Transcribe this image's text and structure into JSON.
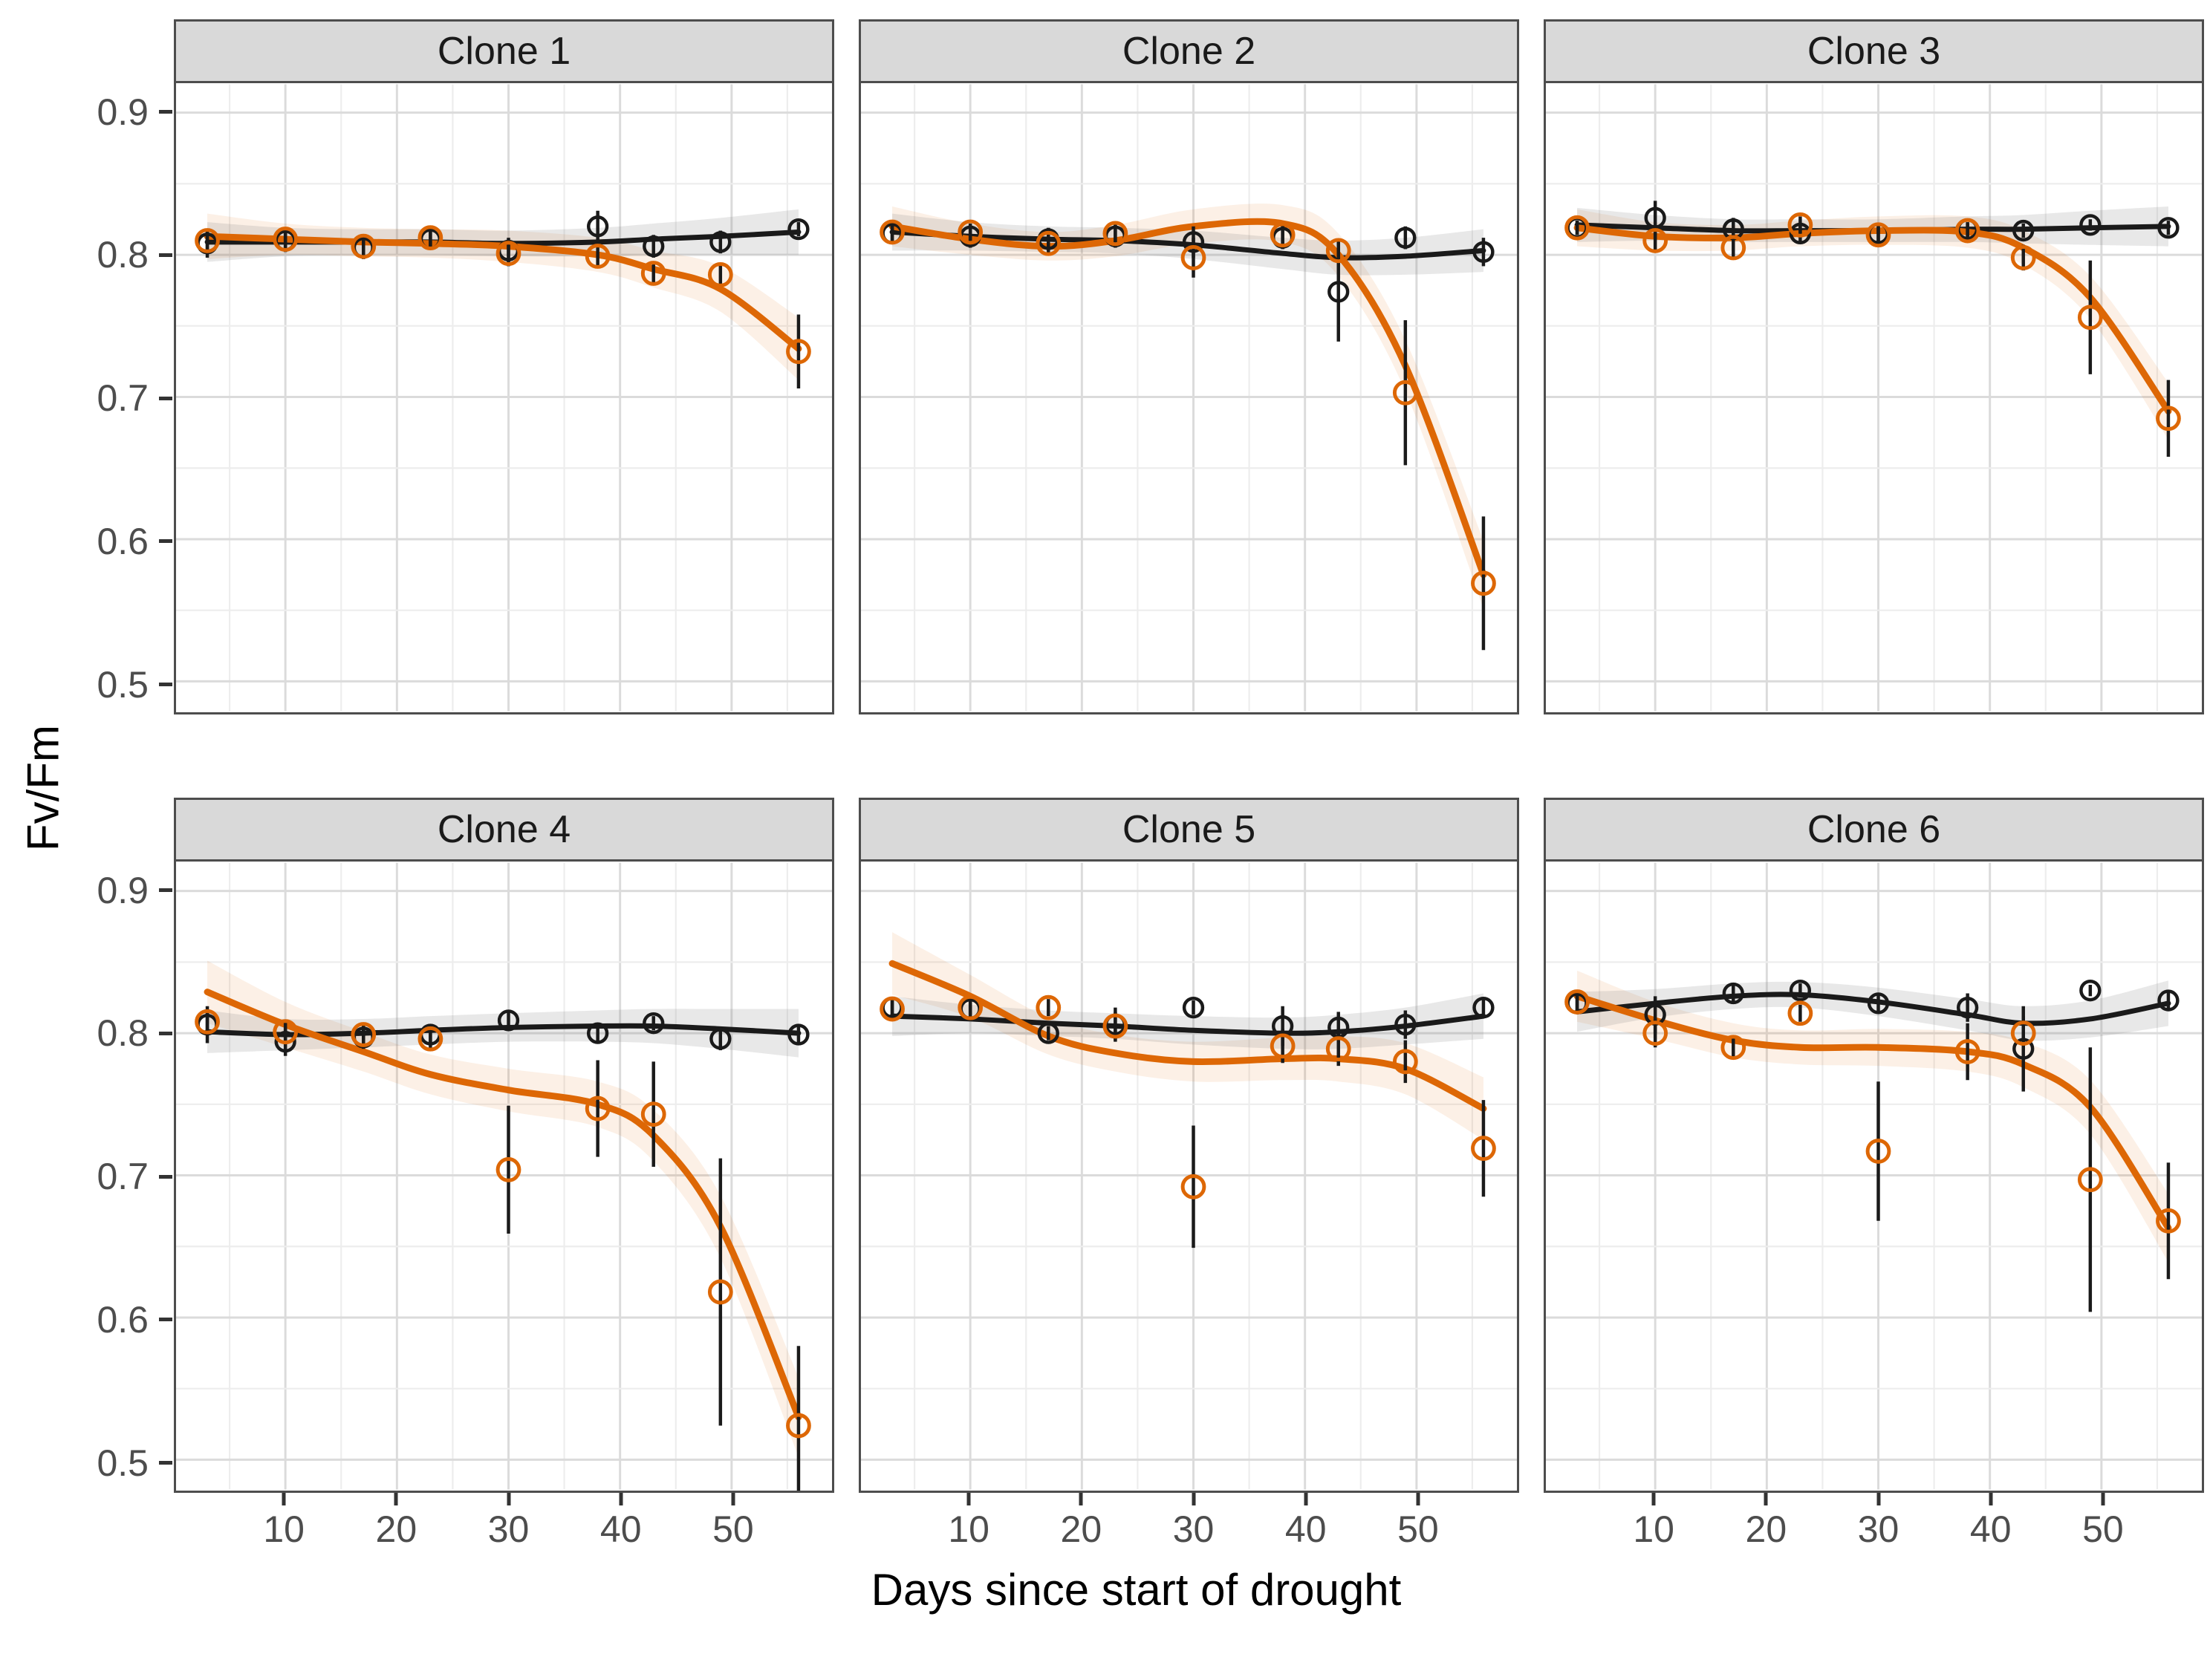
{
  "figure": {
    "colors": {
      "black_series": "#1A1A1A",
      "orange_series": "#DD6705",
      "strip_background": "#D9D9D9",
      "panel_border": "#4D4D4D",
      "grid_major": "#DBDBDB",
      "grid_minor": "#EDEDED",
      "band_black": "rgba(125,125,125,0.18)",
      "band_orange": "rgba(221,103,5,0.10)"
    }
  },
  "chart_data": {
    "type": "line",
    "title": "",
    "xlabel": "Days since start of drought",
    "ylabel": "Fv/Fm",
    "legend": "none",
    "grid": "on",
    "x_ticks": [
      10,
      20,
      30,
      40,
      50
    ],
    "y_ticks": [
      0.9,
      0.8,
      0.7,
      0.6,
      0.5
    ],
    "x_minor_step": 5,
    "y_minor_step": 0.05,
    "xlim": [
      0.2,
      59
    ],
    "ylim": [
      0.479,
      0.92
    ],
    "days": [
      3,
      10,
      17,
      23,
      30,
      38,
      43,
      49,
      56
    ],
    "series_keys": [
      "black",
      "orange"
    ],
    "panels": [
      {
        "label": "Clone 1",
        "black": {
          "y": [
            0.808,
            0.81,
            0.805,
            0.811,
            0.803,
            0.82,
            0.806,
            0.809,
            0.818
          ],
          "err": [
            0.01,
            0.008,
            0.008,
            0.007,
            0.009,
            0.011,
            0.008,
            0.008,
            0.005
          ],
          "smooth": [
            0.809,
            0.809,
            0.809,
            0.809,
            0.808,
            0.809,
            0.811,
            0.813,
            0.816
          ],
          "band": [
            0.014,
            0.01,
            0.009,
            0.009,
            0.009,
            0.01,
            0.011,
            0.013,
            0.016
          ]
        },
        "orange": {
          "y": [
            0.81,
            0.811,
            0.806,
            0.812,
            0.801,
            0.799,
            0.787,
            0.786,
            0.732
          ],
          "err": [
            0.007,
            0.006,
            0.008,
            0.006,
            0.009,
            0.008,
            0.007,
            0.008,
            0.026
          ],
          "smooth": [
            0.813,
            0.811,
            0.809,
            0.808,
            0.806,
            0.8,
            0.79,
            0.776,
            0.734
          ],
          "band": [
            0.016,
            0.011,
            0.01,
            0.01,
            0.011,
            0.012,
            0.013,
            0.016,
            0.022
          ]
        }
      },
      {
        "label": "Clone 2",
        "black": {
          "y": [
            0.815,
            0.813,
            0.811,
            0.813,
            0.809,
            0.812,
            0.774,
            0.812,
            0.802
          ],
          "err": [
            0.006,
            0.008,
            0.008,
            0.008,
            0.011,
            0.008,
            0.035,
            0.008,
            0.01
          ],
          "smooth": [
            0.816,
            0.813,
            0.811,
            0.81,
            0.807,
            0.801,
            0.798,
            0.799,
            0.803
          ],
          "band": [
            0.013,
            0.01,
            0.009,
            0.009,
            0.01,
            0.011,
            0.012,
            0.013,
            0.015
          ]
        },
        "orange": {
          "y": [
            0.816,
            0.816,
            0.808,
            0.815,
            0.798,
            0.814,
            0.803,
            0.703,
            0.569
          ],
          "err": [
            0.006,
            0.006,
            0.008,
            0.008,
            0.014,
            0.008,
            0.008,
            0.051,
            0.047
          ],
          "smooth": [
            0.82,
            0.811,
            0.806,
            0.81,
            0.82,
            0.822,
            0.8,
            0.722,
            0.575
          ],
          "band": [
            0.014,
            0.011,
            0.01,
            0.011,
            0.012,
            0.013,
            0.015,
            0.018,
            0.024
          ]
        }
      },
      {
        "label": "Clone 3",
        "black": {
          "y": [
            0.819,
            0.826,
            0.818,
            0.815,
            0.815,
            0.818,
            0.817,
            0.821,
            0.819
          ],
          "err": [
            0.005,
            0.012,
            0.008,
            0.006,
            0.007,
            0.005,
            0.005,
            0.004,
            0.005
          ],
          "smooth": [
            0.821,
            0.819,
            0.817,
            0.817,
            0.817,
            0.818,
            0.818,
            0.819,
            0.82
          ],
          "band": [
            0.012,
            0.009,
            0.008,
            0.008,
            0.008,
            0.009,
            0.01,
            0.012,
            0.014
          ]
        },
        "orange": {
          "y": [
            0.819,
            0.81,
            0.805,
            0.821,
            0.814,
            0.817,
            0.798,
            0.756,
            0.685
          ],
          "err": [
            0.005,
            0.008,
            0.008,
            0.006,
            0.007,
            0.005,
            0.009,
            0.04,
            0.027
          ],
          "smooth": [
            0.819,
            0.813,
            0.812,
            0.815,
            0.817,
            0.816,
            0.805,
            0.77,
            0.69
          ],
          "band": [
            0.013,
            0.01,
            0.009,
            0.009,
            0.01,
            0.011,
            0.012,
            0.015,
            0.02
          ]
        }
      },
      {
        "label": "Clone 4",
        "black": {
          "y": [
            0.806,
            0.794,
            0.797,
            0.799,
            0.809,
            0.8,
            0.807,
            0.796,
            0.799
          ],
          "err": [
            0.013,
            0.01,
            0.008,
            0.006,
            0.006,
            0.006,
            0.005,
            0.008,
            0.006
          ],
          "smooth": [
            0.801,
            0.799,
            0.8,
            0.802,
            0.804,
            0.805,
            0.805,
            0.803,
            0.8
          ],
          "band": [
            0.015,
            0.011,
            0.01,
            0.01,
            0.01,
            0.011,
            0.012,
            0.014,
            0.017
          ]
        },
        "orange": {
          "y": [
            0.808,
            0.801,
            0.799,
            0.796,
            0.704,
            0.747,
            0.743,
            0.618,
            0.524
          ],
          "err": [
            0.008,
            0.008,
            0.008,
            0.008,
            0.045,
            0.034,
            0.037,
            0.094,
            0.056
          ],
          "smooth": [
            0.829,
            0.806,
            0.787,
            0.771,
            0.76,
            0.75,
            0.728,
            0.664,
            0.53
          ],
          "band": [
            0.022,
            0.016,
            0.014,
            0.014,
            0.015,
            0.016,
            0.018,
            0.022,
            0.028
          ]
        }
      },
      {
        "label": "Clone 5",
        "black": {
          "y": [
            0.818,
            0.817,
            0.8,
            0.806,
            0.818,
            0.805,
            0.804,
            0.806,
            0.818
          ],
          "err": [
            0.006,
            0.006,
            0.005,
            0.012,
            0.005,
            0.014,
            0.011,
            0.01,
            0.006
          ],
          "smooth": [
            0.812,
            0.81,
            0.807,
            0.805,
            0.802,
            0.8,
            0.801,
            0.805,
            0.812
          ],
          "band": [
            0.014,
            0.01,
            0.009,
            0.009,
            0.01,
            0.011,
            0.012,
            0.013,
            0.016
          ]
        },
        "orange": {
          "y": [
            0.817,
            0.818,
            0.818,
            0.805,
            0.692,
            0.791,
            0.789,
            0.78,
            0.719
          ],
          "err": [
            0.006,
            0.005,
            0.006,
            0.01,
            0.043,
            0.012,
            0.012,
            0.015,
            0.034
          ],
          "smooth": [
            0.849,
            0.826,
            0.798,
            0.786,
            0.78,
            0.782,
            0.782,
            0.775,
            0.747
          ],
          "band": [
            0.022,
            0.015,
            0.013,
            0.013,
            0.014,
            0.015,
            0.016,
            0.018,
            0.022
          ]
        }
      },
      {
        "label": "Clone 6",
        "black": {
          "y": [
            0.821,
            0.813,
            0.828,
            0.83,
            0.821,
            0.818,
            0.789,
            0.83,
            0.823
          ],
          "err": [
            0.006,
            0.013,
            0.006,
            0.005,
            0.006,
            0.01,
            0.03,
            0.004,
            0.006
          ],
          "smooth": [
            0.815,
            0.821,
            0.826,
            0.827,
            0.822,
            0.813,
            0.807,
            0.81,
            0.821
          ],
          "band": [
            0.014,
            0.01,
            0.009,
            0.009,
            0.01,
            0.011,
            0.012,
            0.013,
            0.016
          ]
        },
        "orange": {
          "y": [
            0.822,
            0.8,
            0.79,
            0.814,
            0.717,
            0.787,
            0.8,
            0.697,
            0.668
          ],
          "err": [
            0.006,
            0.01,
            0.008,
            0.006,
            0.049,
            0.02,
            0.012,
            0.093,
            0.041
          ],
          "smooth": [
            0.826,
            0.809,
            0.795,
            0.79,
            0.79,
            0.787,
            0.778,
            0.748,
            0.663
          ],
          "band": [
            0.018,
            0.013,
            0.012,
            0.012,
            0.013,
            0.014,
            0.016,
            0.019,
            0.024
          ]
        }
      }
    ]
  }
}
